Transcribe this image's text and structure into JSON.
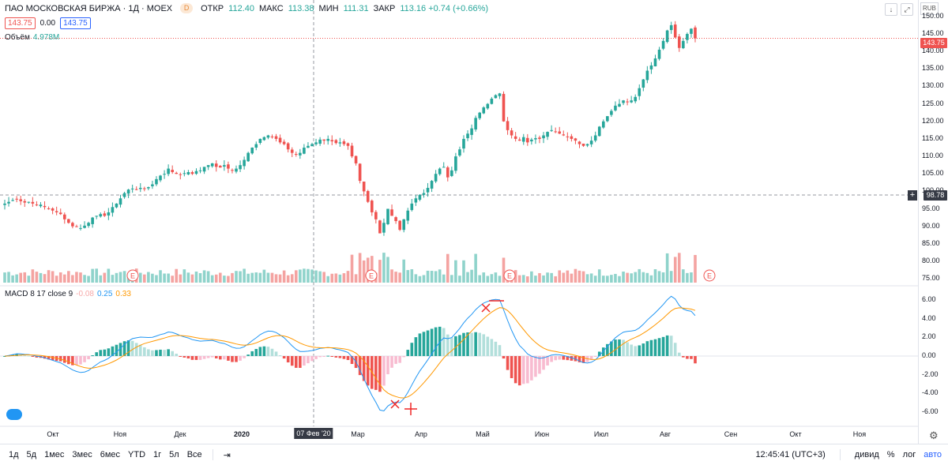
{
  "header": {
    "title": "ПАО МОСКОВСКАЯ БИРЖА · 1Д · MOEX",
    "badge": "D",
    "open_label": "ОТКР",
    "open_value": "112.40",
    "high_label": "МАКС",
    "high_value": "113.38",
    "low_label": "МИН",
    "low_value": "111.31",
    "close_label": "ЗАКР",
    "close_value": "113.16 +0.74 (+0.66%)"
  },
  "price_boxes": {
    "bid": "143.75",
    "spread": "0.00",
    "ask": "143.75"
  },
  "volume": {
    "label": "Объём",
    "value": "4.978M"
  },
  "macd": {
    "label": "MACD 8 17 close 9",
    "hist": "-0.08",
    "macd": "0.25",
    "signal": "0.33"
  },
  "price_axis": {
    "currency": "RUB",
    "ticks": [
      "150.00",
      "145.00",
      "140.00",
      "135.00",
      "130.00",
      "125.00",
      "120.00",
      "115.00",
      "110.00",
      "105.00",
      "100.00",
      "95.00",
      "90.00",
      "85.00",
      "80.00",
      "75.00"
    ],
    "last_price": "143.75",
    "crosshair_price": "98.78"
  },
  "macd_axis": {
    "ticks": [
      "6.00",
      "4.00",
      "2.00",
      "0.00",
      "-2.00",
      "-4.00",
      "-6.00"
    ]
  },
  "time_axis": {
    "ticks": [
      "Окт",
      "Ноя",
      "Дек",
      "2020",
      "Мар",
      "Апр",
      "Май",
      "Июн",
      "Июл",
      "Авг",
      "Сен",
      "Окт",
      "Ноя"
    ],
    "crosshair_date": "07 Фев '20"
  },
  "earnings_marker": "E",
  "toolbar": {
    "timeframes": [
      "1д",
      "5д",
      "1мес",
      "3мес",
      "6мес",
      "YTD",
      "1г",
      "5л",
      "Все"
    ],
    "clock": "12:45:41 (UTC+3)",
    "dividends": "дивид",
    "percent": "%",
    "log": "лог",
    "auto": "авто"
  },
  "colors": {
    "up": "#26a69a",
    "down": "#ef5350",
    "macd": "#2196f3",
    "signal": "#ff9800",
    "vol_up": "#8fd3cb",
    "vol_down": "#f4a3a1"
  },
  "icons": [
    "arrow-down-icon",
    "fullscreen-icon",
    "compare-icon",
    "settings-icon",
    "crosshair-plus-icon",
    "tradingview-logo-icon"
  ],
  "chart_data": {
    "type": "candlestick",
    "ylim": [
      73,
      152
    ],
    "ohlc_closes": [
      96.5,
      97.0,
      97.5,
      97.8,
      97.2,
      96.8,
      97.0,
      96.5,
      96.0,
      96.2,
      95.5,
      95.0,
      94.5,
      94.0,
      93.5,
      92.0,
      91.0,
      90.0,
      89.8,
      89.5,
      90.2,
      91.0,
      92.5,
      93.0,
      93.5,
      93.0,
      94.0,
      95.5,
      96.5,
      98.0,
      99.5,
      100.5,
      100.8,
      100.5,
      101.0,
      100.8,
      101.2,
      102.0,
      103.5,
      104.5,
      105.0,
      106.5,
      105.5,
      105.0,
      104.8,
      105.2,
      105.5,
      105.0,
      105.8,
      106.0,
      107.0,
      107.5,
      108.0,
      107.0,
      106.8,
      107.5,
      106.5,
      106.0,
      106.5,
      107.5,
      109.0,
      111.0,
      112.5,
      113.5,
      115.0,
      115.5,
      116.0,
      115.5,
      115.0,
      114.0,
      113.5,
      112.0,
      111.0,
      110.5,
      111.0,
      112.5,
      113.0,
      113.5,
      114.0,
      114.8,
      114.5,
      115.0,
      114.3,
      113.8,
      114.0,
      113.5,
      113.0,
      110.0,
      108.0,
      103.0,
      100.0,
      97.0,
      94.0,
      92.0,
      88.0,
      91.0,
      95.0,
      93.0,
      91.5,
      89.0,
      92.0,
      94.5,
      96.5,
      98.0,
      99.0,
      99.5,
      101.0,
      103.0,
      105.0,
      106.5,
      107.0,
      104.0,
      106.0,
      110.0,
      112.0,
      115.0,
      116.5,
      118.0,
      121.0,
      122.5,
      124.0,
      125.0,
      126.5,
      127.5,
      128.0,
      120.0,
      117.5,
      116.0,
      115.0,
      114.5,
      115.5,
      114.0,
      114.8,
      115.2,
      115.0,
      116.0,
      117.0,
      117.5,
      117.0,
      116.5,
      116.0,
      115.5,
      115.0,
      114.5,
      113.5,
      113.0,
      113.5,
      114.5,
      116.0,
      118.5,
      120.0,
      121.5,
      123.0,
      124.5,
      125.0,
      126.0,
      125.5,
      126.0,
      127.0,
      129.5,
      132.0,
      134.5,
      136.0,
      138.0,
      140.5,
      143.0,
      146.0,
      147.5,
      144.0,
      141.0,
      143.0,
      145.0,
      146.5,
      143.75
    ],
    "macd_range": [
      -6.5,
      6.5
    ],
    "annotations": [
      "MACD sell cross near 5.0 (May)",
      "MACD buy cross near -5.5 (Mar)"
    ]
  }
}
